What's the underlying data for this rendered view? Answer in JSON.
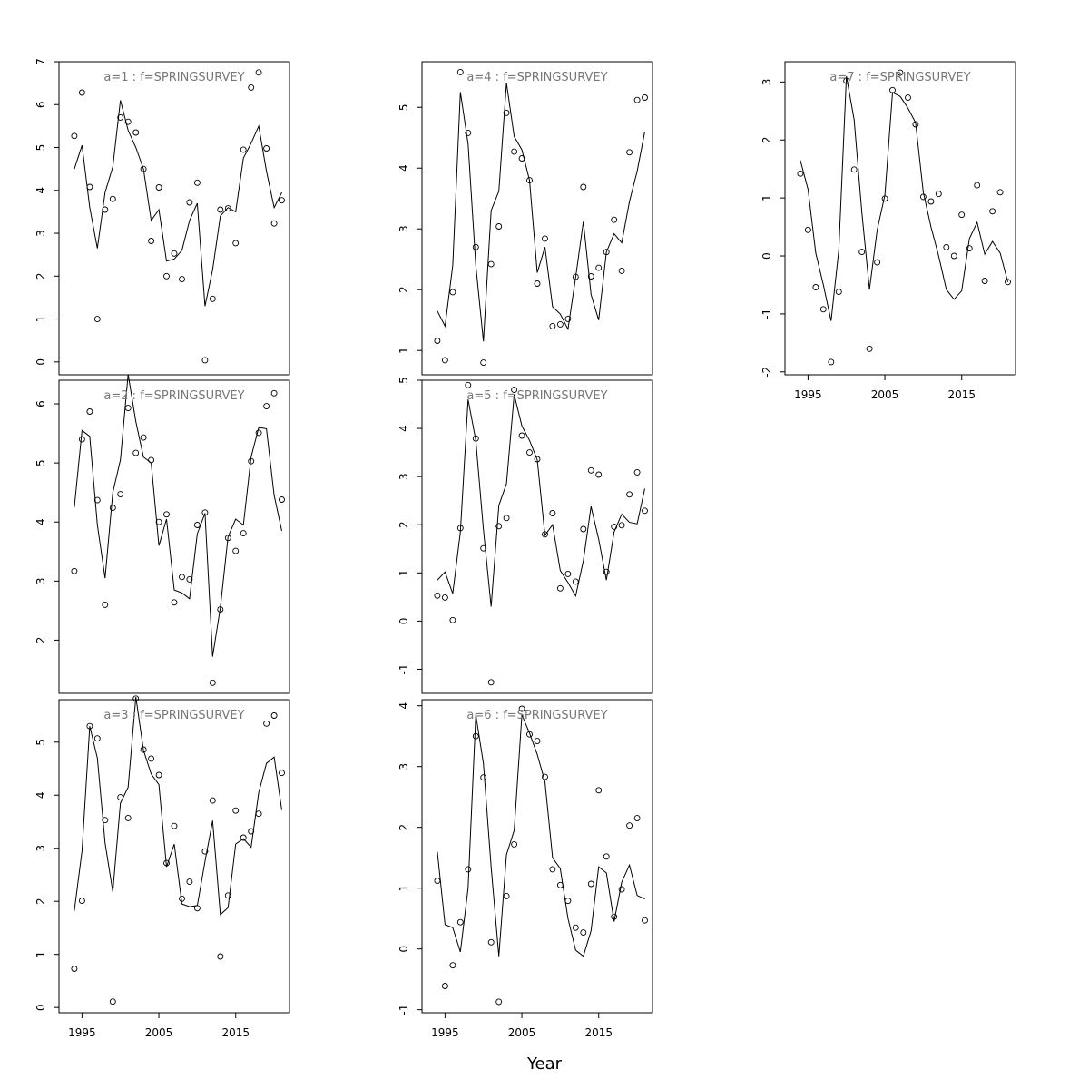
{
  "figure": {
    "xlabel": "Year",
    "title_color": "#777777",
    "line_color": "#000000"
  },
  "chart_data": [
    {
      "type": "line",
      "title": "a=1 : f=SPRINGSURVEY",
      "xlabel": "",
      "ylabel": "",
      "xlim": [
        1992,
        2022
      ],
      "ylim": [
        -0.3,
        7.0
      ],
      "yticks": [
        0,
        1,
        2,
        3,
        4,
        5,
        6,
        7
      ],
      "xticks": [
        1995,
        2005,
        2015
      ],
      "show_xticks": false,
      "x": [
        1994,
        1995,
        1996,
        1997,
        1998,
        1999,
        2000,
        2001,
        2002,
        2003,
        2004,
        2005,
        2006,
        2007,
        2008,
        2009,
        2010,
        2011,
        2012,
        2013,
        2014,
        2015,
        2016,
        2017,
        2018,
        2019,
        2020,
        2021
      ],
      "series": [
        {
          "role": "fitted",
          "style": "line",
          "values": [
            4.5,
            5.05,
            3.6,
            2.65,
            3.95,
            4.55,
            6.1,
            5.4,
            5.0,
            4.5,
            3.3,
            3.55,
            2.35,
            2.4,
            2.6,
            3.3,
            3.7,
            1.3,
            2.15,
            3.4,
            3.6,
            3.5,
            4.75,
            5.1,
            5.5,
            4.45,
            3.6,
            3.95
          ]
        },
        {
          "role": "observed",
          "style": "points",
          "values": [
            5.27,
            6.28,
            4.08,
            1.0,
            3.55,
            3.8,
            5.7,
            5.6,
            5.35,
            4.5,
            2.82,
            4.07,
            2.0,
            2.53,
            1.93,
            3.72,
            4.18,
            0.04,
            1.47,
            3.55,
            3.58,
            2.77,
            4.95,
            6.4,
            6.75,
            4.98,
            3.23,
            3.77
          ]
        }
      ]
    },
    {
      "type": "line",
      "title": "a=2 : f=SPRINGSURVEY",
      "xlabel": "",
      "ylabel": "",
      "xlim": [
        1992,
        2022
      ],
      "ylim": [
        1.1,
        6.4
      ],
      "yticks": [
        2,
        3,
        4,
        5,
        6
      ],
      "xticks": [
        1995,
        2005,
        2015
      ],
      "show_xticks": false,
      "x": [
        1994,
        1995,
        1996,
        1997,
        1998,
        1999,
        2000,
        2001,
        2002,
        2003,
        2004,
        2005,
        2006,
        2007,
        2008,
        2009,
        2010,
        2011,
        2012,
        2013,
        2014,
        2015,
        2016,
        2017,
        2018,
        2019,
        2020,
        2021
      ],
      "series": [
        {
          "role": "fitted",
          "style": "line",
          "values": [
            4.25,
            5.55,
            5.45,
            3.95,
            3.05,
            4.5,
            5.05,
            6.5,
            5.7,
            5.1,
            5.0,
            3.6,
            4.05,
            2.85,
            2.8,
            2.7,
            3.8,
            4.15,
            1.72,
            2.55,
            3.75,
            4.05,
            3.95,
            5.1,
            5.6,
            5.58,
            4.45,
            3.85
          ]
        },
        {
          "role": "observed",
          "style": "points",
          "values": [
            3.17,
            5.4,
            5.87,
            4.37,
            2.6,
            4.24,
            4.47,
            5.93,
            5.17,
            5.43,
            5.05,
            4.0,
            4.13,
            2.64,
            3.07,
            3.03,
            3.95,
            4.16,
            1.28,
            2.52,
            3.73,
            3.51,
            3.81,
            5.03,
            5.51,
            5.96,
            6.18,
            4.38
          ]
        }
      ]
    },
    {
      "type": "line",
      "title": "a=3 : f=SPRINGSURVEY",
      "xlabel": "",
      "ylabel": "",
      "xlim": [
        1992,
        2022
      ],
      "ylim": [
        -0.1,
        5.8
      ],
      "yticks": [
        0,
        1,
        2,
        3,
        4,
        5
      ],
      "xticks": [
        1995,
        2005,
        2015
      ],
      "show_xticks": true,
      "x": [
        1994,
        1995,
        1996,
        1997,
        1998,
        1999,
        2000,
        2001,
        2002,
        2003,
        2004,
        2005,
        2006,
        2007,
        2008,
        2009,
        2010,
        2011,
        2012,
        2013,
        2014,
        2015,
        2016,
        2017,
        2018,
        2019,
        2020,
        2021
      ],
      "series": [
        {
          "role": "fitted",
          "style": "line",
          "values": [
            1.82,
            2.95,
            5.3,
            4.7,
            3.1,
            2.18,
            3.85,
            4.15,
            5.85,
            4.85,
            4.4,
            4.2,
            2.65,
            3.08,
            1.95,
            1.9,
            1.92,
            2.75,
            3.52,
            1.75,
            1.88,
            3.08,
            3.18,
            3.02,
            4.05,
            4.6,
            4.72,
            3.72
          ]
        },
        {
          "role": "observed",
          "style": "points",
          "values": [
            0.73,
            2.01,
            5.3,
            5.07,
            3.53,
            0.11,
            3.96,
            3.57,
            5.82,
            4.86,
            4.69,
            4.38,
            2.72,
            3.42,
            2.05,
            2.37,
            1.87,
            2.94,
            3.9,
            0.96,
            2.11,
            3.71,
            3.2,
            3.32,
            3.65,
            5.35,
            5.5,
            4.42
          ]
        }
      ]
    },
    {
      "type": "line",
      "title": "a=4 : f=SPRINGSURVEY",
      "xlabel": "",
      "ylabel": "",
      "xlim": [
        1992,
        2022
      ],
      "ylim": [
        0.6,
        5.75
      ],
      "yticks": [
        1,
        2,
        3,
        4,
        5
      ],
      "xticks": [
        1995,
        2005,
        2015
      ],
      "show_xticks": false,
      "x": [
        1994,
        1995,
        1996,
        1997,
        1998,
        1999,
        2000,
        2001,
        2002,
        2003,
        2004,
        2005,
        2006,
        2007,
        2008,
        2009,
        2010,
        2011,
        2012,
        2013,
        2014,
        2015,
        2016,
        2017,
        2018,
        2019,
        2020,
        2021
      ],
      "series": [
        {
          "role": "fitted",
          "style": "line",
          "values": [
            1.65,
            1.4,
            2.4,
            5.25,
            4.4,
            2.4,
            1.15,
            3.3,
            3.62,
            5.4,
            4.52,
            4.3,
            3.8,
            2.28,
            2.7,
            1.72,
            1.6,
            1.35,
            2.2,
            3.12,
            1.92,
            1.5,
            2.62,
            2.92,
            2.77,
            3.45,
            3.95,
            4.6
          ]
        },
        {
          "role": "observed",
          "style": "points",
          "values": [
            1.16,
            0.84,
            1.96,
            5.58,
            4.58,
            2.7,
            0.8,
            2.42,
            3.04,
            4.91,
            4.27,
            4.16,
            3.8,
            2.1,
            2.84,
            1.4,
            1.43,
            1.52,
            2.21,
            3.69,
            2.22,
            2.36,
            2.62,
            3.15,
            2.31,
            4.26,
            5.12,
            5.16
          ]
        }
      ]
    },
    {
      "type": "line",
      "title": "a=5 : f=SPRINGSURVEY",
      "xlabel": "",
      "ylabel": "",
      "xlim": [
        1992,
        2022
      ],
      "ylim": [
        -1.5,
        5.0
      ],
      "yticks": [
        -1,
        0,
        1,
        2,
        3,
        4,
        5
      ],
      "xticks": [
        1995,
        2005,
        2015
      ],
      "show_xticks": false,
      "x": [
        1994,
        1995,
        1996,
        1997,
        1998,
        1999,
        2000,
        2001,
        2002,
        2003,
        2004,
        2005,
        2006,
        2007,
        2008,
        2009,
        2010,
        2011,
        2012,
        2013,
        2014,
        2015,
        2016,
        2017,
        2018,
        2019,
        2020,
        2021
      ],
      "series": [
        {
          "role": "fitted",
          "style": "line",
          "values": [
            0.85,
            1.02,
            0.57,
            1.85,
            4.6,
            3.75,
            1.9,
            0.3,
            2.4,
            2.85,
            4.7,
            4.05,
            3.75,
            3.35,
            1.78,
            2.0,
            1.05,
            0.8,
            0.52,
            1.25,
            2.38,
            1.7,
            0.85,
            1.85,
            2.22,
            2.05,
            2.02,
            2.75
          ]
        },
        {
          "role": "observed",
          "style": "points",
          "values": [
            0.53,
            0.49,
            0.02,
            1.93,
            4.9,
            3.79,
            1.51,
            -1.27,
            1.97,
            2.14,
            4.8,
            3.85,
            3.5,
            3.36,
            1.8,
            2.24,
            0.68,
            0.98,
            0.82,
            1.91,
            3.13,
            3.04,
            1.02,
            1.96,
            1.99,
            2.63,
            3.09,
            2.29
          ]
        }
      ]
    },
    {
      "type": "line",
      "title": "a=6 : f=SPRINGSURVEY",
      "xlabel": "",
      "ylabel": "",
      "xlim": [
        1992,
        2022
      ],
      "ylim": [
        -1.05,
        4.1
      ],
      "yticks": [
        -1,
        0,
        1,
        2,
        3,
        4
      ],
      "xticks": [
        1995,
        2005,
        2015
      ],
      "show_xticks": true,
      "x": [
        1994,
        1995,
        1996,
        1997,
        1998,
        1999,
        2000,
        2001,
        2002,
        2003,
        2004,
        2005,
        2006,
        2007,
        2008,
        2009,
        2010,
        2011,
        2012,
        2013,
        2014,
        2015,
        2016,
        2017,
        2018,
        2019,
        2020,
        2021
      ],
      "series": [
        {
          "role": "fitted",
          "style": "line",
          "values": [
            1.6,
            0.4,
            0.35,
            -0.05,
            1.0,
            3.85,
            3.05,
            1.35,
            -0.12,
            1.55,
            1.95,
            3.85,
            3.55,
            3.2,
            2.75,
            1.5,
            1.32,
            0.5,
            -0.02,
            -0.12,
            0.3,
            1.35,
            1.25,
            0.45,
            1.1,
            1.38,
            0.88,
            0.82
          ]
        },
        {
          "role": "observed",
          "style": "points",
          "values": [
            1.12,
            -0.61,
            -0.27,
            0.44,
            1.31,
            3.5,
            2.82,
            0.11,
            -0.87,
            0.87,
            1.72,
            3.95,
            3.53,
            3.42,
            2.83,
            1.31,
            1.05,
            0.79,
            0.35,
            0.27,
            1.07,
            2.61,
            1.52,
            0.53,
            0.98,
            2.03,
            2.15,
            0.47
          ]
        }
      ]
    },
    {
      "type": "line",
      "title": "a=7 : f=SPRINGSURVEY",
      "xlabel": "",
      "ylabel": "",
      "xlim": [
        1992,
        2022
      ],
      "ylim": [
        -2.05,
        3.35
      ],
      "yticks": [
        -2,
        -1,
        0,
        1,
        2,
        3
      ],
      "xticks": [
        1995,
        2005,
        2015
      ],
      "show_xticks": true,
      "x": [
        1994,
        1995,
        1996,
        1997,
        1998,
        1999,
        2000,
        2001,
        2002,
        2003,
        2004,
        2005,
        2006,
        2007,
        2008,
        2009,
        2010,
        2011,
        2012,
        2013,
        2014,
        2015,
        2016,
        2017,
        2018,
        2019,
        2020,
        2021
      ],
      "series": [
        {
          "role": "fitted",
          "style": "line",
          "values": [
            1.65,
            1.15,
            0.05,
            -0.5,
            -1.12,
            0.1,
            3.1,
            2.35,
            0.75,
            -0.58,
            0.45,
            1.05,
            2.82,
            2.75,
            2.55,
            2.3,
            1.1,
            0.5,
            0.0,
            -0.58,
            -0.75,
            -0.6,
            0.3,
            0.58,
            0.03,
            0.25,
            0.05,
            -0.45
          ]
        },
        {
          "role": "observed",
          "style": "points",
          "values": [
            1.42,
            0.45,
            -0.54,
            -0.92,
            -1.83,
            -0.62,
            3.02,
            1.49,
            0.07,
            -1.6,
            -0.11,
            0.99,
            2.86,
            3.16,
            2.73,
            2.27,
            1.02,
            0.94,
            1.07,
            0.15,
            0.0,
            0.71,
            0.13,
            1.22,
            -0.43,
            0.77,
            1.1,
            -0.45
          ]
        }
      ]
    }
  ]
}
